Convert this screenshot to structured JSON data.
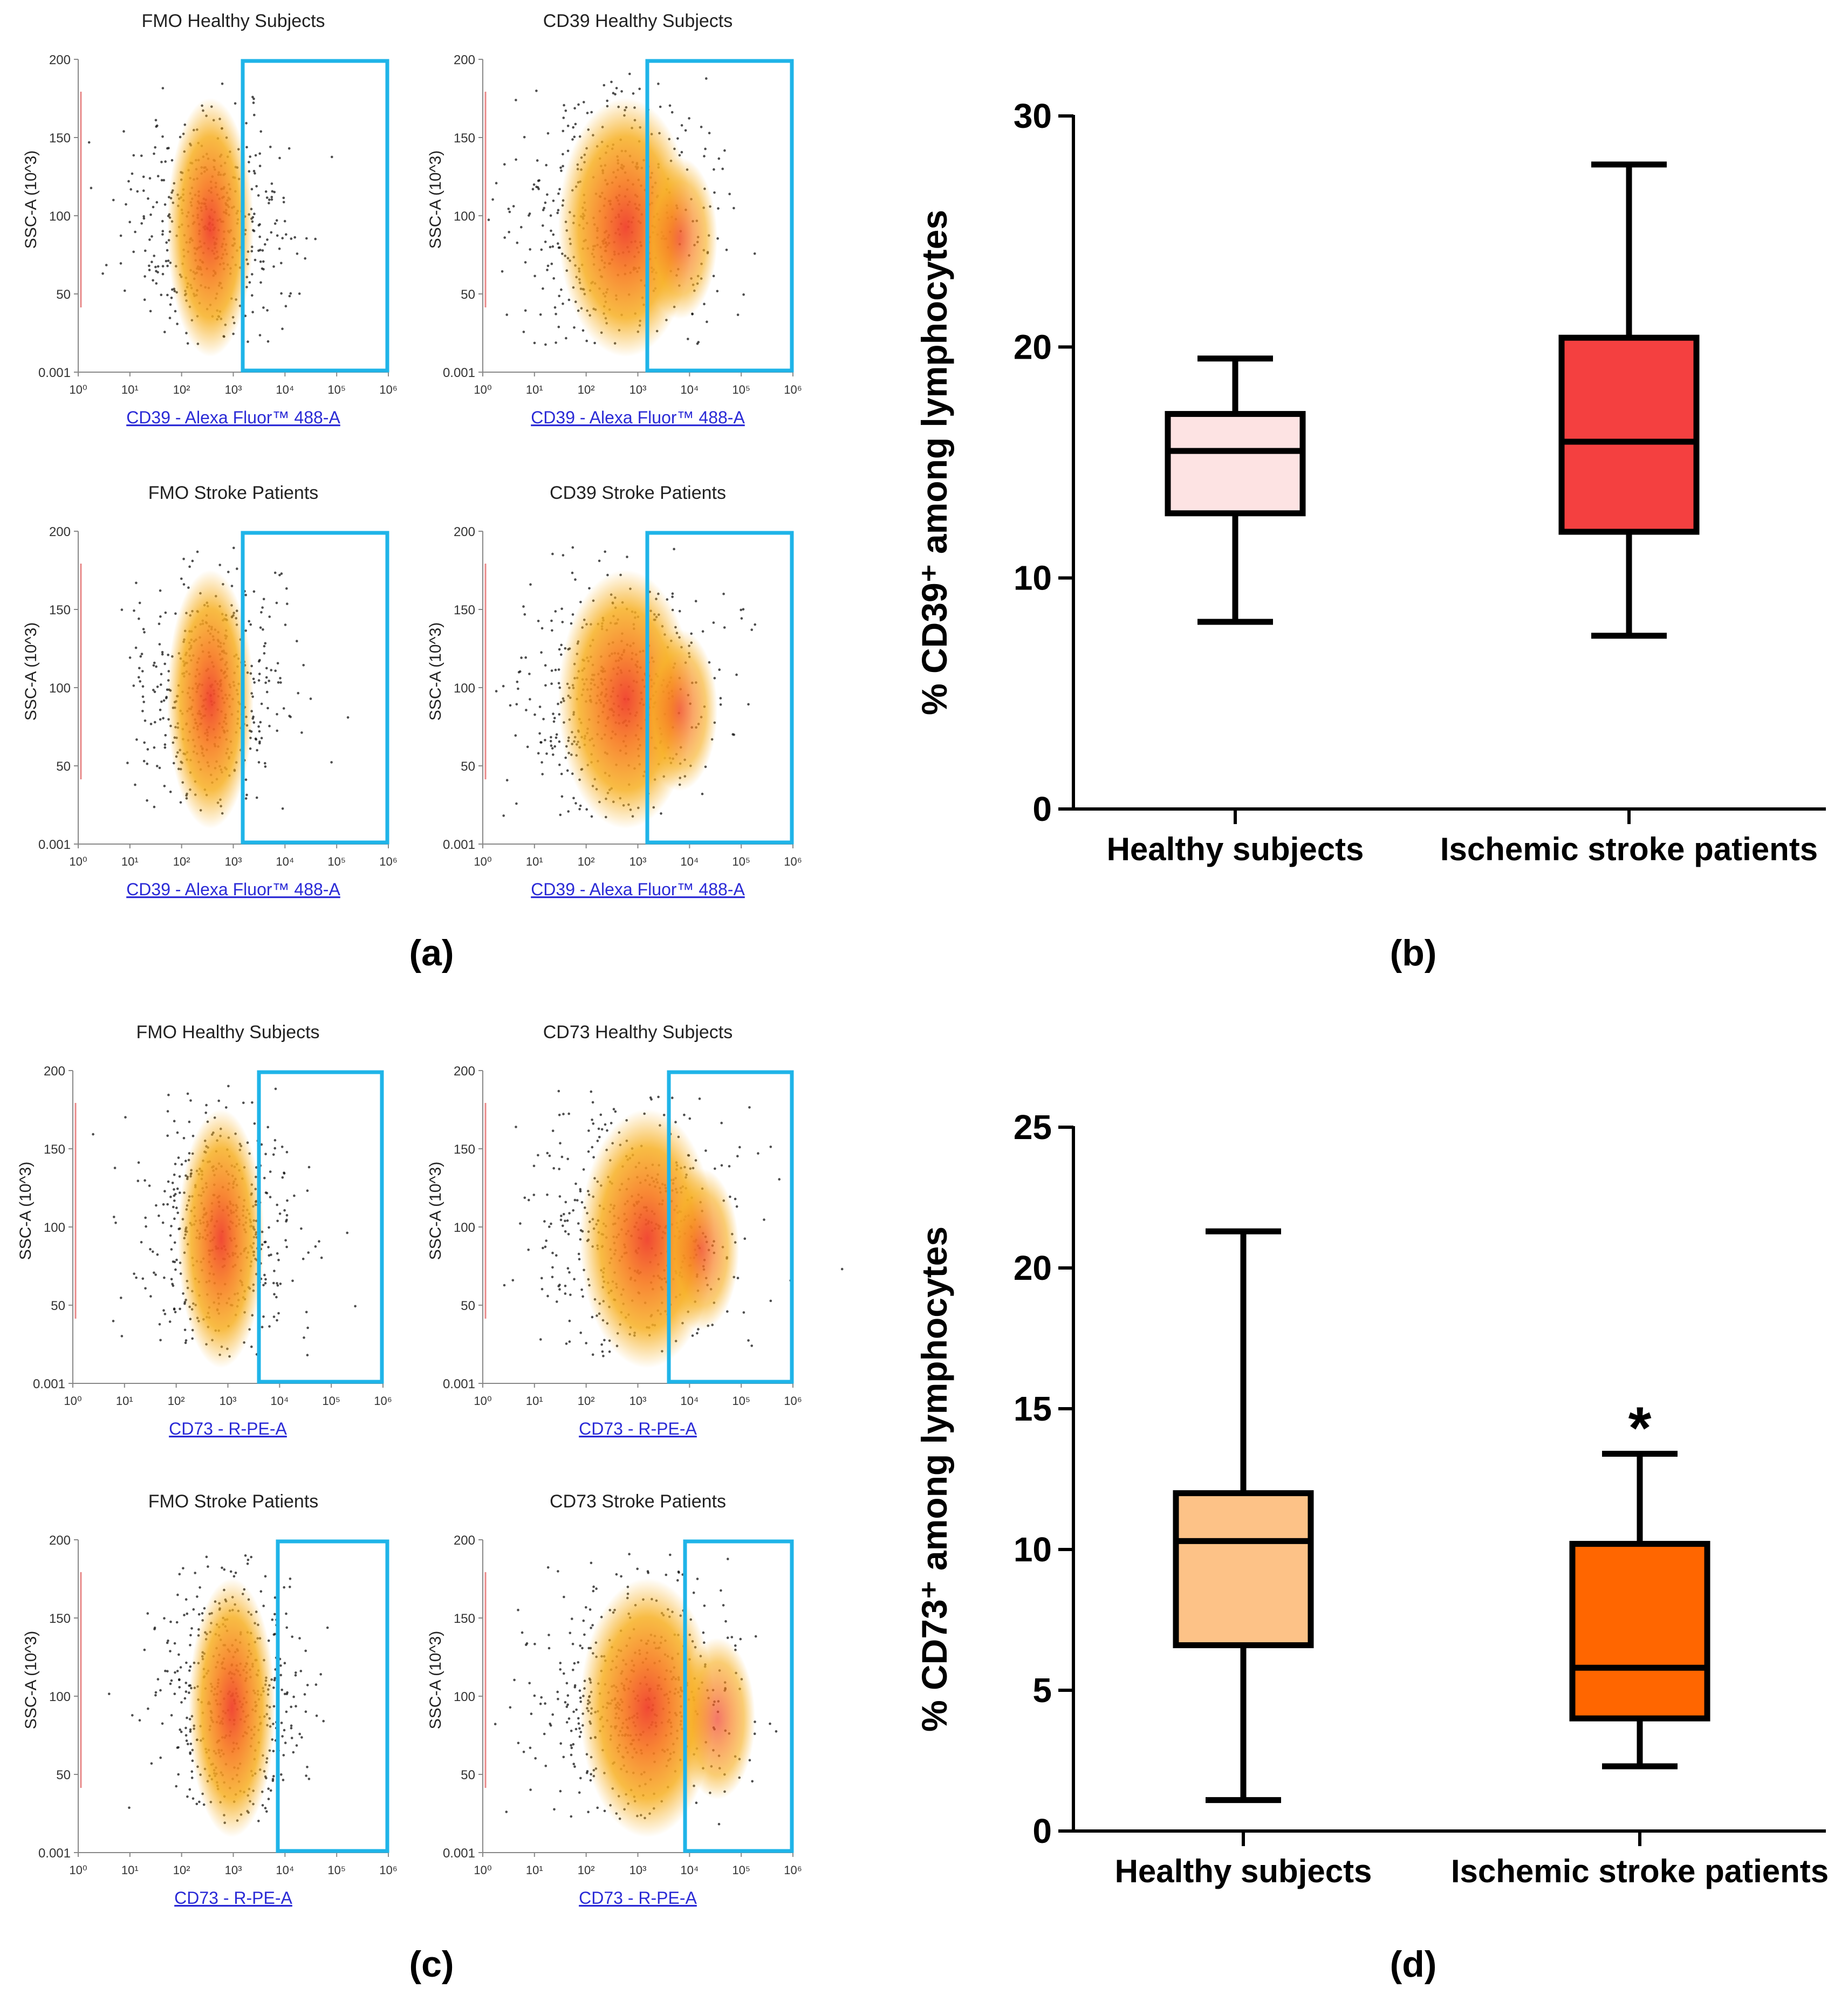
{
  "panels": {
    "a": {
      "label": "(a)"
    },
    "b": {
      "label": "(b)"
    },
    "c": {
      "label": "(c)"
    },
    "d": {
      "label": "(d)"
    }
  },
  "colors": {
    "gate": "#1fb4e8",
    "axis_link": "#2a2ad6",
    "healthy_cd39": "#fde3e3",
    "stroke_cd39": "#f44040",
    "healthy_cd73": "#fdc287",
    "stroke_cd73": "#ff6600"
  },
  "flow_plots": [
    {
      "panel": "a",
      "title": "FMO Healthy Subjects",
      "xlabel": "CD39 - Alexa Fluor™ 488-A",
      "ylabel": "SSC-A (10^3)",
      "gate": "CD39+",
      "shift": 0
    },
    {
      "panel": "a",
      "title": "CD39 Healthy Subjects",
      "xlabel": "CD39 - Alexa Fluor™ 488-A",
      "ylabel": "SSC-A (10^3)",
      "gate": "CD39+",
      "shift": 1
    },
    {
      "panel": "a",
      "title": "FMO Stroke Patients",
      "xlabel": "CD39 - Alexa Fluor™ 488-A",
      "ylabel": "SSC-A (10^3)",
      "gate": "CD39+",
      "shift": 0
    },
    {
      "panel": "a",
      "title": "CD39 Stroke Patients",
      "xlabel": "CD39 - Alexa Fluor™ 488-A",
      "ylabel": "SSC-A (10^3)",
      "gate": "CD39+",
      "shift": 1
    },
    {
      "panel": "c",
      "title": "FMO Healthy Subjects",
      "xlabel": "CD73 - R-PE-A",
      "ylabel": "SSC-A (10^3)",
      "gate": "CD73+",
      "shift": 0
    },
    {
      "panel": "c",
      "title": "CD73 Healthy Subjects",
      "xlabel": "CD73 - R-PE-A",
      "ylabel": "SSC-A (10^3)",
      "gate": "CD73+",
      "shift": 1
    },
    {
      "panel": "c",
      "title": "FMO Stroke Patients",
      "xlabel": "CD73 - R-PE-A",
      "ylabel": "SSC-A (10^3)",
      "gate": "CD73+",
      "shift": 0
    },
    {
      "panel": "c",
      "title": "CD73 Stroke Patients",
      "xlabel": "CD73 - R-PE-A",
      "ylabel": "SSC-A (10^3)",
      "gate": "CD73+",
      "shift": 1
    }
  ],
  "flow_axes": {
    "yticks": [
      "200",
      "150",
      "100",
      "50",
      "0.001"
    ],
    "xticks": [
      "10⁰",
      "10¹",
      "10²",
      "10³",
      "10⁴",
      "10⁵",
      "10⁶"
    ]
  },
  "chart_data": [
    {
      "panel": "b",
      "type": "box",
      "title": "",
      "ylabel": "% CD39⁺ among lymphocytes",
      "xlabel": "",
      "ylim": [
        0,
        30
      ],
      "yticks": [
        0,
        10,
        20,
        30
      ],
      "categories": [
        "Healthy subjects",
        "Ischemic stroke patients"
      ],
      "boxes": [
        {
          "name": "Healthy subjects",
          "min": 8.1,
          "q1": 12.8,
          "median": 15.5,
          "q3": 17.1,
          "max": 19.5,
          "color": "#fde3e3"
        },
        {
          "name": "Ischemic stroke patients",
          "min": 7.5,
          "q1": 12.0,
          "median": 15.9,
          "q3": 20.4,
          "max": 27.9,
          "color": "#f44040"
        }
      ],
      "annotations": []
    },
    {
      "panel": "d",
      "type": "box",
      "title": "",
      "ylabel": "% CD73⁺ among lymphocytes",
      "xlabel": "",
      "ylim": [
        0,
        25
      ],
      "yticks": [
        0,
        5,
        10,
        15,
        20,
        25
      ],
      "categories": [
        "Healthy subjects",
        "Ischemic stroke patients"
      ],
      "boxes": [
        {
          "name": "Healthy subjects",
          "min": 1.1,
          "q1": 6.6,
          "median": 10.3,
          "q3": 12.0,
          "max": 21.3,
          "color": "#fdc287"
        },
        {
          "name": "Ischemic stroke patients",
          "min": 2.3,
          "q1": 4.0,
          "median": 5.8,
          "q3": 10.2,
          "max": 13.4,
          "color": "#ff6600"
        }
      ],
      "annotations": [
        {
          "category": "Ischemic stroke patients",
          "text": "*"
        }
      ]
    }
  ]
}
